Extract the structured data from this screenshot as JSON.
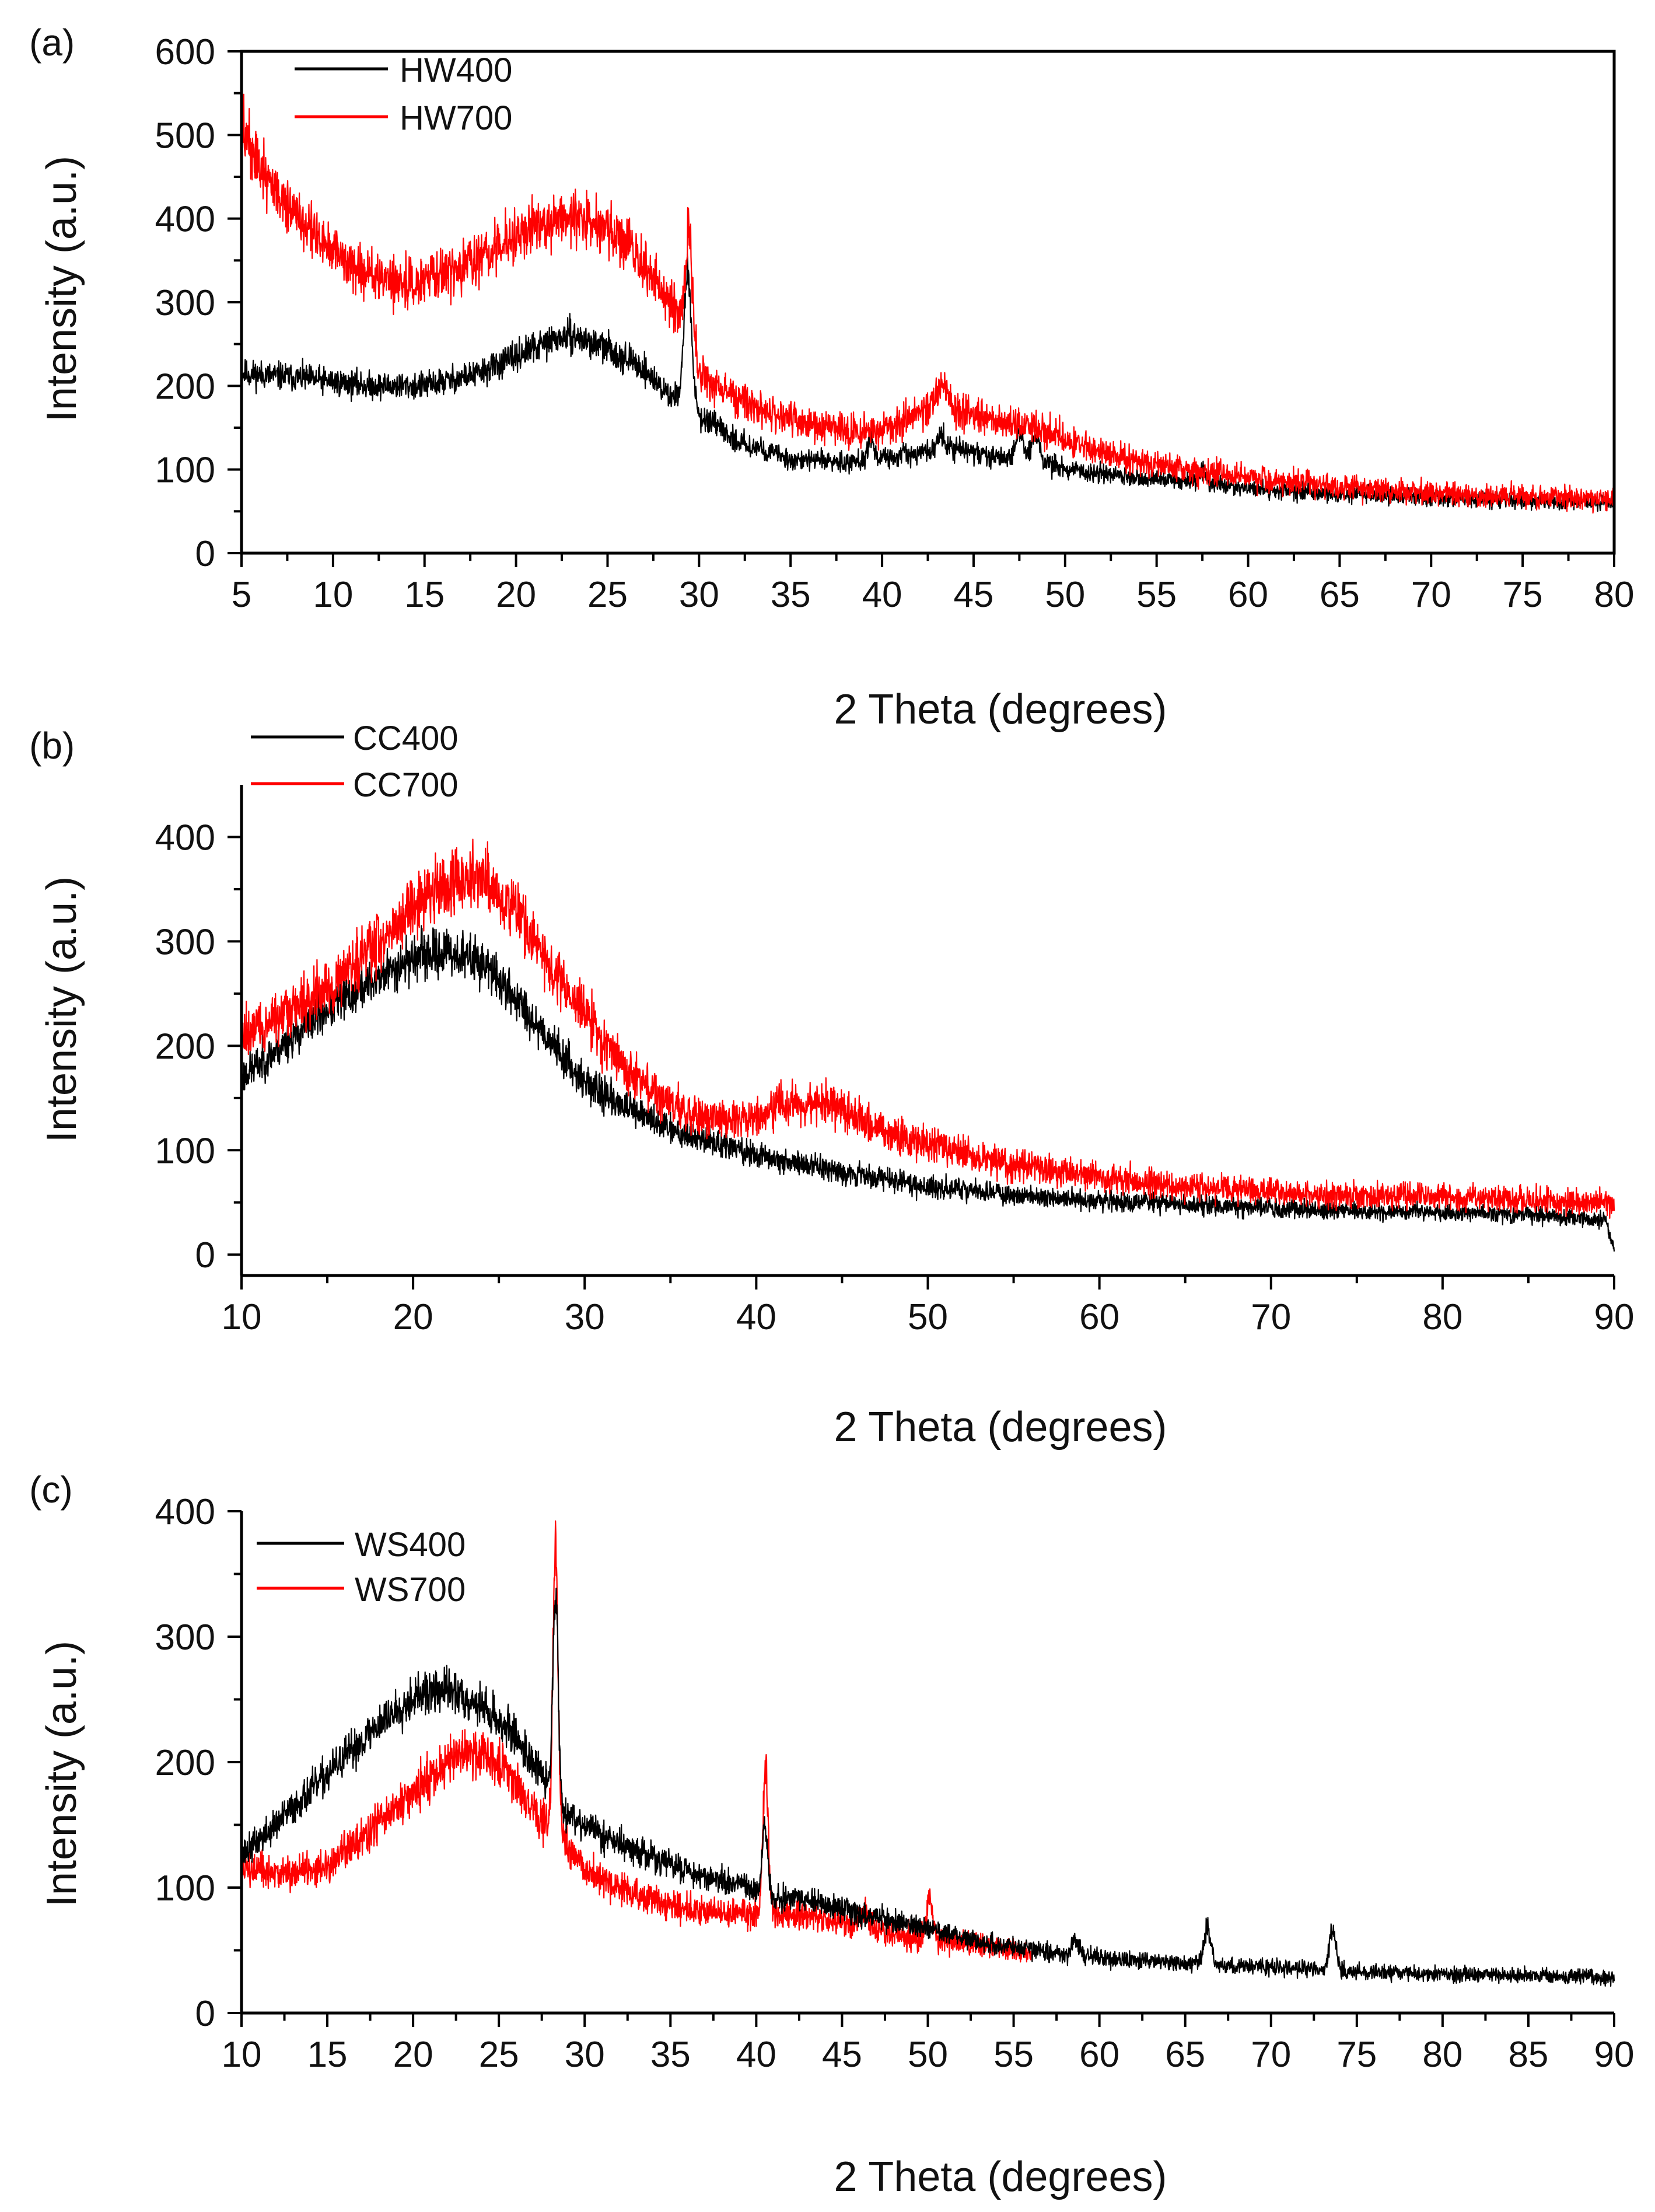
{
  "chart_data": [
    {
      "type": "line",
      "panel_label": "(a)",
      "title": "",
      "xlabel": "2 Theta (degrees)",
      "ylabel": "Intensity (a.u.)",
      "xlim": [
        5,
        80
      ],
      "ylim": [
        0,
        600
      ],
      "xticks": [
        5,
        10,
        15,
        20,
        25,
        30,
        35,
        40,
        45,
        50,
        55,
        60,
        65,
        70,
        75,
        80
      ],
      "yticks": [
        0,
        100,
        200,
        300,
        400,
        500,
        600
      ],
      "legend_position": "top-left",
      "series": [
        {
          "name": "HW400",
          "color": "#000000",
          "noise": 14,
          "profile": [
            [
              5,
              215
            ],
            [
              8,
              210
            ],
            [
              10,
              205
            ],
            [
              12,
              200
            ],
            [
              15,
              200
            ],
            [
              18,
              215
            ],
            [
              20,
              235
            ],
            [
              22,
              255
            ],
            [
              23,
              260
            ],
            [
              25,
              245
            ],
            [
              27,
              220
            ],
            [
              28.5,
              185
            ],
            [
              29.0,
              200
            ],
            [
              29.3,
              280
            ],
            [
              29.6,
              200
            ],
            [
              30,
              165
            ],
            [
              32,
              135
            ],
            [
              35,
              112
            ],
            [
              38,
              110
            ],
            [
              40,
              112
            ],
            [
              42,
              120
            ],
            [
              44,
              125
            ],
            [
              46,
              115
            ],
            [
              48,
              115
            ],
            [
              50,
              100
            ],
            [
              55,
              88
            ],
            [
              57,
              85
            ],
            [
              60,
              78
            ],
            [
              65,
              70
            ],
            [
              70,
              66
            ],
            [
              75,
              63
            ],
            [
              80,
              60
            ]
          ],
          "peaks": [
            [
              29.45,
              0.18,
              80
            ],
            [
              39.4,
              0.15,
              30
            ],
            [
              43.2,
              0.2,
              20
            ],
            [
              47.5,
              0.2,
              30
            ],
            [
              48.4,
              0.2,
              30
            ],
            [
              57.5,
              0.2,
              12
            ]
          ]
        },
        {
          "name": "HW700",
          "color": "#ff0000",
          "noise": 20,
          "profile": [
            [
              5,
              510
            ],
            [
              6,
              460
            ],
            [
              8,
              400
            ],
            [
              10,
              360
            ],
            [
              12,
              330
            ],
            [
              14,
              320
            ],
            [
              16,
              330
            ],
            [
              18,
              355
            ],
            [
              20,
              380
            ],
            [
              22,
              400
            ],
            [
              24,
              400
            ],
            [
              26,
              370
            ],
            [
              27.5,
              330
            ],
            [
              28.5,
              300
            ],
            [
              29.5,
              260
            ],
            [
              30,
              215
            ],
            [
              32,
              185
            ],
            [
              35,
              160
            ],
            [
              37,
              148
            ],
            [
              39,
              145
            ],
            [
              41,
              155
            ],
            [
              43,
              180
            ],
            [
              45,
              165
            ],
            [
              47,
              155
            ],
            [
              49,
              145
            ],
            [
              52,
              120
            ],
            [
              55,
              105
            ],
            [
              60,
              90
            ],
            [
              65,
              80
            ],
            [
              70,
              72
            ],
            [
              75,
              68
            ],
            [
              80,
              65
            ]
          ],
          "peaks": [
            [
              29.45,
              0.18,
              120
            ],
            [
              43.3,
              0.25,
              25
            ]
          ]
        }
      ]
    },
    {
      "type": "line",
      "panel_label": "(b)",
      "title": "",
      "xlabel": "2 Theta (degrees)",
      "ylabel": "Intensity (a.u.)",
      "xlim": [
        10,
        90
      ],
      "ylim": [
        -20,
        450
      ],
      "xticks": [
        10,
        20,
        30,
        40,
        50,
        60,
        70,
        80,
        90
      ],
      "yticks": [
        0,
        100,
        200,
        300,
        400
      ],
      "legend_position": "top-left",
      "series": [
        {
          "name": "CC400",
          "color": "#000000",
          "noise": 16,
          "profile": [
            [
              10,
              170
            ],
            [
              12,
              195
            ],
            [
              15,
              235
            ],
            [
              18,
              265
            ],
            [
              20,
              285
            ],
            [
              22,
              290
            ],
            [
              24,
              280
            ],
            [
              26,
              245
            ],
            [
              28,
              205
            ],
            [
              30,
              165
            ],
            [
              33,
              135
            ],
            [
              36,
              115
            ],
            [
              40,
              95
            ],
            [
              45,
              80
            ],
            [
              50,
              65
            ],
            [
              55,
              57
            ],
            [
              60,
              52
            ],
            [
              65,
              48
            ],
            [
              70,
              45
            ],
            [
              75,
              42
            ],
            [
              80,
              40
            ],
            [
              85,
              38
            ],
            [
              89.5,
              33
            ],
            [
              90,
              5
            ]
          ],
          "peaks": []
        },
        {
          "name": "CC700",
          "color": "#ff0000",
          "noise": 20,
          "profile": [
            [
              10,
              210
            ],
            [
              12,
              225
            ],
            [
              15,
              255
            ],
            [
              18,
              300
            ],
            [
              20,
              330
            ],
            [
              22,
              355
            ],
            [
              24,
              360
            ],
            [
              26,
              330
            ],
            [
              28,
              275
            ],
            [
              30,
              230
            ],
            [
              32,
              185
            ],
            [
              34,
              155
            ],
            [
              36,
              135
            ],
            [
              38,
              130
            ],
            [
              40,
              130
            ],
            [
              42,
              145
            ],
            [
              44,
              145
            ],
            [
              46,
              130
            ],
            [
              48,
              115
            ],
            [
              50,
              105
            ],
            [
              55,
              85
            ],
            [
              60,
              75
            ],
            [
              65,
              65
            ],
            [
              70,
              60
            ],
            [
              75,
              57
            ],
            [
              80,
              55
            ],
            [
              85,
              52
            ],
            [
              90,
              50
            ]
          ],
          "peaks": []
        }
      ]
    },
    {
      "type": "line",
      "panel_label": "(c)",
      "title": "",
      "xlabel": "2 Theta (degrees)",
      "ylabel": "Intensity (a.u.)",
      "xlim": [
        10,
        90
      ],
      "ylim": [
        0,
        400
      ],
      "xticks": [
        10,
        15,
        20,
        25,
        30,
        35,
        40,
        45,
        50,
        55,
        60,
        65,
        70,
        75,
        80,
        85,
        90
      ],
      "yticks": [
        0,
        100,
        200,
        300,
        400
      ],
      "legend_position": "top-left",
      "series": [
        {
          "name": "WS400",
          "color": "#000000",
          "noise": 13,
          "profile": [
            [
              10,
              125
            ],
            [
              12,
              150
            ],
            [
              15,
              190
            ],
            [
              18,
              230
            ],
            [
              20,
              252
            ],
            [
              22,
              258
            ],
            [
              24,
              245
            ],
            [
              26,
              220
            ],
            [
              27.5,
              190
            ],
            [
              28.5,
              165
            ],
            [
              30,
              150
            ],
            [
              32,
              135
            ],
            [
              35,
              118
            ],
            [
              38,
              105
            ],
            [
              40,
              98
            ],
            [
              41,
              92
            ],
            [
              43,
              90
            ],
            [
              45,
              83
            ],
            [
              47,
              76
            ],
            [
              50,
              68
            ],
            [
              52,
              60
            ],
            [
              55,
              52
            ],
            [
              58,
              47
            ],
            [
              60,
              44
            ],
            [
              65,
              40
            ],
            [
              70,
              36
            ],
            [
              75,
              33
            ],
            [
              80,
              31
            ],
            [
              85,
              30
            ],
            [
              90,
              28
            ]
          ],
          "peaks": [
            [
              28.3,
              0.15,
              170
            ],
            [
              40.5,
              0.15,
              55
            ],
            [
              66.3,
              0.2,
              30
            ],
            [
              73.6,
              0.2,
              32
            ],
            [
              58.6,
              0.2,
              12
            ]
          ]
        },
        {
          "name": "WS700",
          "color": "#ff0000",
          "noise": 16,
          "profile": [
            [
              10,
              115
            ],
            [
              12,
              110
            ],
            [
              15,
              118
            ],
            [
              18,
              150
            ],
            [
              20,
              175
            ],
            [
              22,
              200
            ],
            [
              24,
              210
            ],
            [
              25.5,
              195
            ],
            [
              27,
              160
            ],
            [
              28.5,
              140
            ],
            [
              30,
              115
            ],
            [
              32,
              100
            ],
            [
              34,
              90
            ],
            [
              36,
              82
            ],
            [
              38,
              80
            ],
            [
              40,
              80
            ],
            [
              42,
              80
            ],
            [
              45,
              72
            ],
            [
              48,
              63
            ],
            [
              50,
              58
            ],
            [
              52,
              56
            ],
            [
              54,
              52
            ],
            [
              56,
              48
            ]
          ],
          "peaks": [
            [
              28.3,
              0.15,
              230
            ],
            [
              40.55,
              0.15,
              115
            ],
            [
              46.3,
              0.2,
              15
            ],
            [
              50.1,
              0.18,
              35
            ]
          ]
        }
      ]
    }
  ]
}
